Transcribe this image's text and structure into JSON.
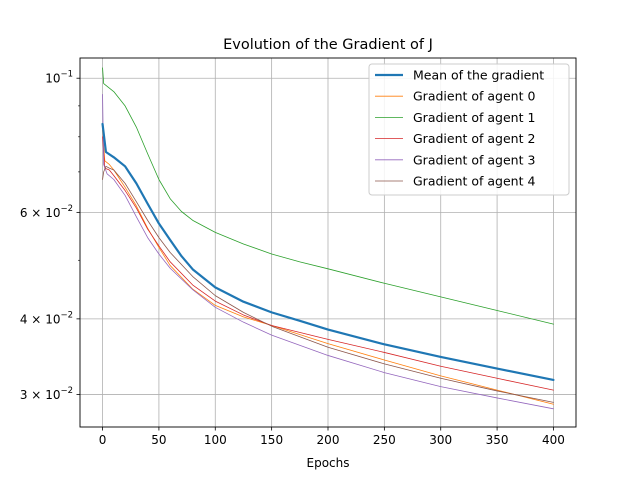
{
  "chart_data": {
    "type": "line",
    "title": "Evolution of the Gradient of J",
    "xlabel": "Epochs",
    "ylabel": "",
    "xlim": [
      -20,
      420
    ],
    "ylim": [
      0.0265,
      0.108
    ],
    "yscale": "log",
    "grid": "vertical-and-major-horizontal",
    "legend_position": "top-right",
    "x_ticks": [
      0,
      50,
      100,
      150,
      200,
      250,
      300,
      350,
      400
    ],
    "y_ticks": [
      {
        "value": 0.1,
        "mantissa": "",
        "base": "10",
        "exp": "−1"
      },
      {
        "value": 0.06,
        "mantissa": "6 × ",
        "base": "10",
        "exp": "−2"
      },
      {
        "value": 0.04,
        "mantissa": "4 × ",
        "base": "10",
        "exp": "−2"
      },
      {
        "value": 0.03,
        "mantissa": "3 × ",
        "base": "10",
        "exp": "−2"
      }
    ],
    "y_minor_ticks": [
      0.05,
      0.07,
      0.08,
      0.09
    ],
    "series": [
      {
        "name": "Mean of the gradient",
        "color": "#1f77b4",
        "width": 2.2,
        "x": [
          0,
          3,
          10,
          20,
          30,
          40,
          50,
          60,
          70,
          80,
          100,
          125,
          150,
          175,
          200,
          250,
          300,
          350,
          400
        ],
        "y": [
          0.084,
          0.0755,
          0.074,
          0.0715,
          0.067,
          0.062,
          0.0575,
          0.054,
          0.0508,
          0.0483,
          0.0451,
          0.0427,
          0.041,
          0.0397,
          0.0384,
          0.0363,
          0.0346,
          0.0331,
          0.0317
        ]
      },
      {
        "name": "Gradient of agent 0",
        "color": "#ff7f0e",
        "width": 0.8,
        "x": [
          0,
          2,
          6,
          10,
          20,
          30,
          40,
          50,
          60,
          80,
          100,
          125,
          150,
          200,
          250,
          300,
          350,
          400
        ],
        "y": [
          0.082,
          0.073,
          0.072,
          0.0705,
          0.066,
          0.0615,
          0.0565,
          0.0525,
          0.049,
          0.0448,
          0.0421,
          0.0403,
          0.039,
          0.0364,
          0.0342,
          0.0322,
          0.0305,
          0.0289
        ]
      },
      {
        "name": "Gradient of agent 1",
        "color": "#2ca02c",
        "width": 0.8,
        "x": [
          0,
          1,
          10,
          20,
          30,
          40,
          50,
          60,
          70,
          80,
          100,
          125,
          150,
          175,
          200,
          250,
          300,
          350,
          400
        ],
        "y": [
          0.104,
          0.098,
          0.095,
          0.09,
          0.083,
          0.075,
          0.068,
          0.0632,
          0.0602,
          0.0582,
          0.0556,
          0.0532,
          0.0512,
          0.0497,
          0.0484,
          0.0458,
          0.0435,
          0.0413,
          0.0392
        ]
      },
      {
        "name": "Gradient of agent 2",
        "color": "#d62728",
        "width": 0.8,
        "x": [
          0,
          2,
          6,
          10,
          20,
          30,
          40,
          50,
          60,
          80,
          100,
          125,
          150,
          200,
          250,
          300,
          350,
          400
        ],
        "y": [
          0.08,
          0.071,
          0.0705,
          0.069,
          0.0652,
          0.061,
          0.0563,
          0.0528,
          0.0497,
          0.0455,
          0.0428,
          0.0406,
          0.039,
          0.037,
          0.0352,
          0.0334,
          0.0319,
          0.0305
        ]
      },
      {
        "name": "Gradient of agent 3",
        "color": "#9467bd",
        "width": 0.8,
        "x": [
          0,
          1,
          4,
          10,
          20,
          30,
          40,
          50,
          60,
          80,
          100,
          125,
          150,
          200,
          250,
          300,
          350,
          400
        ],
        "y": [
          0.094,
          0.072,
          0.0695,
          0.068,
          0.064,
          0.059,
          0.0545,
          0.0512,
          0.0485,
          0.0447,
          0.0418,
          0.0395,
          0.0376,
          0.0348,
          0.0326,
          0.0309,
          0.0296,
          0.0284
        ]
      },
      {
        "name": "Gradient of agent 4",
        "color": "#8c564b",
        "width": 0.8,
        "x": [
          0,
          1,
          3,
          6,
          10,
          20,
          30,
          40,
          50,
          60,
          80,
          100,
          125,
          150,
          200,
          250,
          300,
          350,
          400
        ],
        "y": [
          0.068,
          0.07,
          0.0715,
          0.071,
          0.0705,
          0.067,
          0.0625,
          0.0582,
          0.0545,
          0.0515,
          0.047,
          0.0437,
          0.041,
          0.0389,
          0.0359,
          0.0337,
          0.0319,
          0.0304,
          0.0291
        ]
      }
    ]
  }
}
